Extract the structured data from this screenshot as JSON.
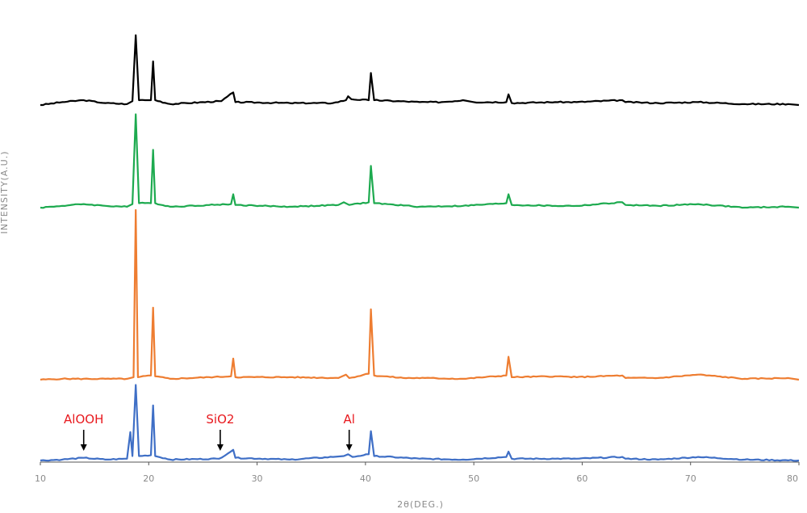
{
  "chart_data": {
    "type": "line",
    "xlabel": "2θ(DEG.)",
    "ylabel": "INTENSITY(A.U.)",
    "xlim": [
      10,
      80
    ],
    "xticks": [
      10,
      20,
      30,
      40,
      50,
      60,
      70,
      80
    ],
    "grid": false,
    "legend": "none",
    "yticks_shown": false,
    "series": [
      {
        "color": "#000000",
        "baseline": 0.0,
        "points": [
          [
            10,
            0.0
          ],
          [
            12,
            0.03
          ],
          [
            14,
            0.05
          ],
          [
            16,
            0.02
          ],
          [
            18,
            0.01
          ],
          [
            18.5,
            0.04
          ],
          [
            18.8,
            0.72
          ],
          [
            19.1,
            0.05
          ],
          [
            20.2,
            0.05
          ],
          [
            20.4,
            0.45
          ],
          [
            20.6,
            0.05
          ],
          [
            22,
            0.01
          ],
          [
            26.7,
            0.04
          ],
          [
            27.8,
            0.13
          ],
          [
            28,
            0.03
          ],
          [
            33,
            0.02
          ],
          [
            37,
            0.02
          ],
          [
            38.2,
            0.05
          ],
          [
            38.4,
            0.09
          ],
          [
            38.7,
            0.06
          ],
          [
            40.3,
            0.05
          ],
          [
            40.5,
            0.33
          ],
          [
            40.8,
            0.05
          ],
          [
            45,
            0.03
          ],
          [
            47,
            0.03
          ],
          [
            49,
            0.05
          ],
          [
            50,
            0.03
          ],
          [
            53,
            0.03
          ],
          [
            53.2,
            0.11
          ],
          [
            53.5,
            0.02
          ],
          [
            57.5,
            0.03
          ],
          [
            59.5,
            0.03
          ],
          [
            63.7,
            0.05
          ],
          [
            64,
            0.03
          ],
          [
            67,
            0.02
          ],
          [
            70.7,
            0.03
          ],
          [
            75,
            0.01
          ],
          [
            79,
            0.01
          ],
          [
            80,
            0.0
          ]
        ]
      },
      {
        "color": "#1daa4f",
        "baseline": 0.0,
        "points": [
          [
            10,
            0.0
          ],
          [
            12,
            0.02
          ],
          [
            14,
            0.04
          ],
          [
            16,
            0.02
          ],
          [
            18,
            0.01
          ],
          [
            18.5,
            0.04
          ],
          [
            18.8,
            1.05
          ],
          [
            19.1,
            0.05
          ],
          [
            20.2,
            0.05
          ],
          [
            20.4,
            0.65
          ],
          [
            20.6,
            0.05
          ],
          [
            22,
            0.01
          ],
          [
            27.6,
            0.04
          ],
          [
            27.8,
            0.15
          ],
          [
            28,
            0.03
          ],
          [
            33,
            0.01
          ],
          [
            37.5,
            0.03
          ],
          [
            38,
            0.06
          ],
          [
            38.5,
            0.03
          ],
          [
            40.3,
            0.06
          ],
          [
            40.5,
            0.47
          ],
          [
            40.8,
            0.05
          ],
          [
            45,
            0.01
          ],
          [
            49,
            0.02
          ],
          [
            53,
            0.05
          ],
          [
            53.2,
            0.15
          ],
          [
            53.5,
            0.03
          ],
          [
            57.5,
            0.02
          ],
          [
            59.5,
            0.02
          ],
          [
            63.7,
            0.06
          ],
          [
            64,
            0.03
          ],
          [
            67,
            0.02
          ],
          [
            70.7,
            0.04
          ],
          [
            75,
            0.0
          ],
          [
            79,
            0.01
          ],
          [
            80,
            0.0
          ]
        ]
      },
      {
        "color": "#ee7d31",
        "baseline": 0.0,
        "points": [
          [
            10,
            0.0
          ],
          [
            12,
            0.01
          ],
          [
            16,
            0.01
          ],
          [
            18,
            0.01
          ],
          [
            18.6,
            0.03
          ],
          [
            18.8,
            2.0
          ],
          [
            19.0,
            0.03
          ],
          [
            20.2,
            0.05
          ],
          [
            20.4,
            0.85
          ],
          [
            20.6,
            0.04
          ],
          [
            22,
            0.01
          ],
          [
            27.6,
            0.04
          ],
          [
            27.8,
            0.25
          ],
          [
            28,
            0.03
          ],
          [
            33,
            0.03
          ],
          [
            37.5,
            0.02
          ],
          [
            38.2,
            0.06
          ],
          [
            38.5,
            0.02
          ],
          [
            40.3,
            0.07
          ],
          [
            40.5,
            0.83
          ],
          [
            40.8,
            0.05
          ],
          [
            43.5,
            0.02
          ],
          [
            45.5,
            0.02
          ],
          [
            49,
            0.01
          ],
          [
            53,
            0.05
          ],
          [
            53.2,
            0.27
          ],
          [
            53.5,
            0.03
          ],
          [
            57.5,
            0.04
          ],
          [
            59.5,
            0.03
          ],
          [
            63.7,
            0.05
          ],
          [
            64,
            0.02
          ],
          [
            67,
            0.02
          ],
          [
            70.7,
            0.06
          ],
          [
            75,
            0.01
          ],
          [
            79,
            0.02
          ],
          [
            80,
            0.0
          ]
        ]
      },
      {
        "color": "#3f6fc6",
        "baseline": 0.0,
        "points": [
          [
            10,
            0.0
          ],
          [
            12,
            0.01
          ],
          [
            14,
            0.03
          ],
          [
            16,
            0.01
          ],
          [
            18,
            0.02
          ],
          [
            18.3,
            0.32
          ],
          [
            18.5,
            0.05
          ],
          [
            18.8,
            0.85
          ],
          [
            19.1,
            0.05
          ],
          [
            20.2,
            0.06
          ],
          [
            20.4,
            0.62
          ],
          [
            20.6,
            0.05
          ],
          [
            22,
            0.01
          ],
          [
            26.5,
            0.02
          ],
          [
            27.8,
            0.12
          ],
          [
            28,
            0.03
          ],
          [
            33,
            0.01
          ],
          [
            37,
            0.04
          ],
          [
            38,
            0.05
          ],
          [
            38.4,
            0.07
          ],
          [
            38.8,
            0.04
          ],
          [
            40.3,
            0.07
          ],
          [
            40.5,
            0.33
          ],
          [
            40.8,
            0.05
          ],
          [
            45,
            0.02
          ],
          [
            49,
            0.01
          ],
          [
            53,
            0.04
          ],
          [
            53.2,
            0.1
          ],
          [
            53.5,
            0.02
          ],
          [
            57.5,
            0.02
          ],
          [
            59.5,
            0.02
          ],
          [
            63.7,
            0.04
          ],
          [
            64,
            0.02
          ],
          [
            67,
            0.01
          ],
          [
            70.7,
            0.04
          ],
          [
            75,
            0.01
          ],
          [
            80,
            0.0
          ]
        ]
      }
    ],
    "annotations": [
      {
        "text": "AlOOH",
        "x": 14,
        "series": 3,
        "color": "#e8191e"
      },
      {
        "text": "SiO2",
        "x": 26.6,
        "series": 3,
        "color": "#e8191e"
      },
      {
        "text": "Al",
        "x": 38.5,
        "series": 3,
        "color": "#e8191e"
      }
    ],
    "axis_color": "#555555"
  }
}
